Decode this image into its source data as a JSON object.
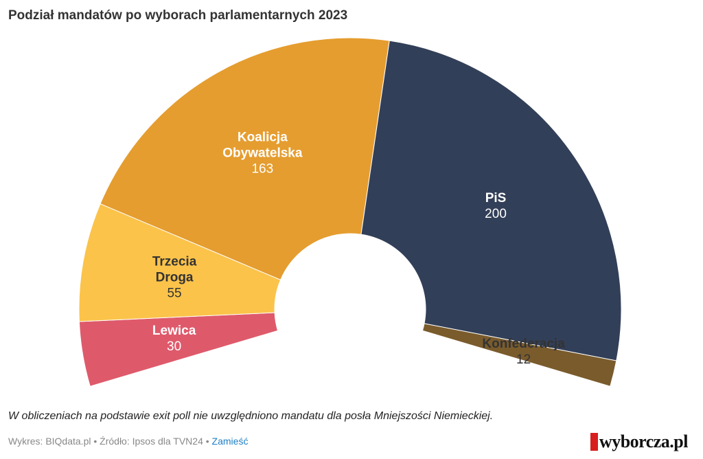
{
  "chart_data": {
    "type": "parliament",
    "title": "Podział mandatów po wyborach parlamentarnych 2023",
    "categories": [
      "Lewica",
      "Trzecia Droga",
      "Koalicja Obywatelska",
      "PiS",
      "Konfederacja"
    ],
    "values": [
      30,
      55,
      163,
      200,
      12
    ],
    "colors": [
      "#de5a6b",
      "#fbc34a",
      "#e59d2f",
      "#323f58",
      "#7a5b2c"
    ],
    "label_colors": [
      "#ffffff",
      "#333333",
      "#ffffff",
      "#ffffff",
      "#333333"
    ],
    "note": "W obliczeniach na podstawie exit poll nie uwzględniono mandatu dla posła Mniejszości Niemieckiej.",
    "credit": "Wykres: BIQdata.pl •",
    "source": "Źródło: Ipsos dla TVN24 •",
    "link": "Zamieść",
    "logo": "wyborcza.pl"
  }
}
